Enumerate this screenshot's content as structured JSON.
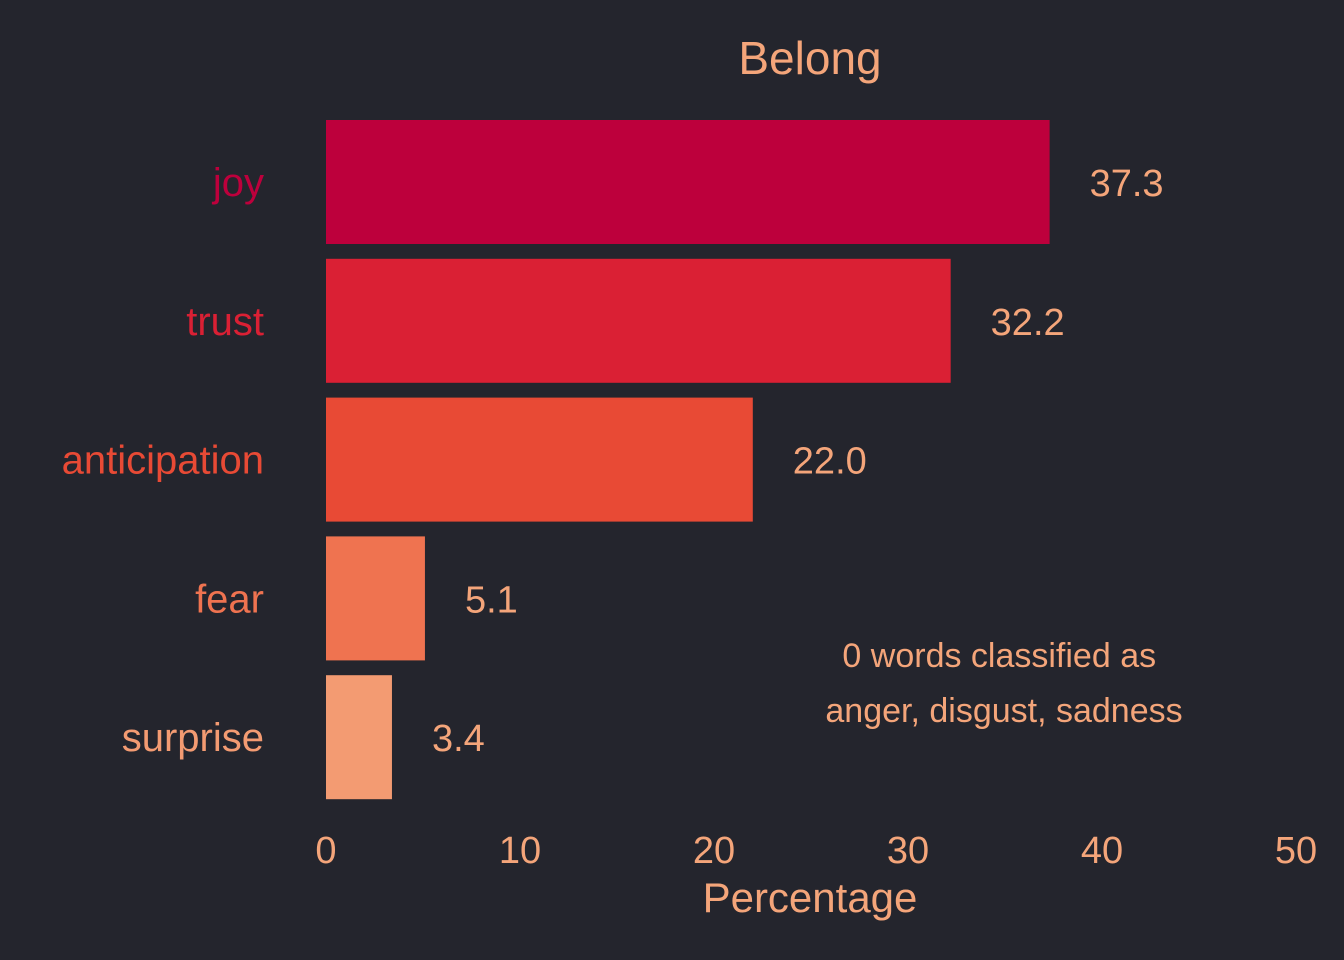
{
  "chart_data": {
    "type": "bar",
    "orientation": "horizontal",
    "title": "Belong",
    "xlabel": "Percentage",
    "ylabel": "",
    "xlim": [
      0,
      50
    ],
    "xticks": [
      "0",
      "10",
      "20",
      "30",
      "40",
      "50"
    ],
    "grid": false,
    "categories": [
      "joy",
      "trust",
      "anticipation",
      "fear",
      "surprise"
    ],
    "values": [
      37.3,
      32.2,
      22.0,
      5.1,
      3.4
    ],
    "value_labels": [
      "37.3",
      "32.2",
      "22.0",
      "5.1",
      "3.4"
    ],
    "bar_colors": [
      "#bd003c",
      "#da2034",
      "#e84a35",
      "#ef7350",
      "#f39b72"
    ],
    "annotation": [
      "0 words classified as",
      "anger, disgust, sadness"
    ]
  },
  "colors": {
    "background": "#24252d",
    "text": "#f4a57a"
  }
}
